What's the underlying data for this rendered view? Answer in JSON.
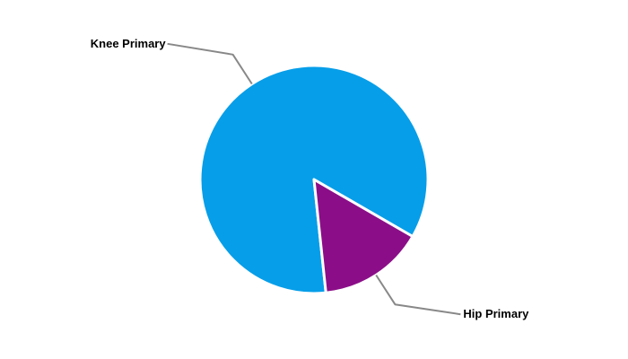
{
  "page": {
    "background_color": "#ffffff"
  },
  "chart_data": {
    "type": "pie",
    "title": "",
    "series": [
      {
        "label": "Knee Primary",
        "value": 85,
        "color": "#069ee9"
      },
      {
        "label": "Hip Primary",
        "value": 15,
        "color": "#8b0e88"
      }
    ],
    "value_unit": "percent",
    "start_angle_deg": 174,
    "direction": "clockwise",
    "slice_border_color": "#ffffff",
    "slice_border_width": 3,
    "leader_line_color": "#888888",
    "label_color": "#000000",
    "legend_position": "none",
    "gridlines": false
  }
}
